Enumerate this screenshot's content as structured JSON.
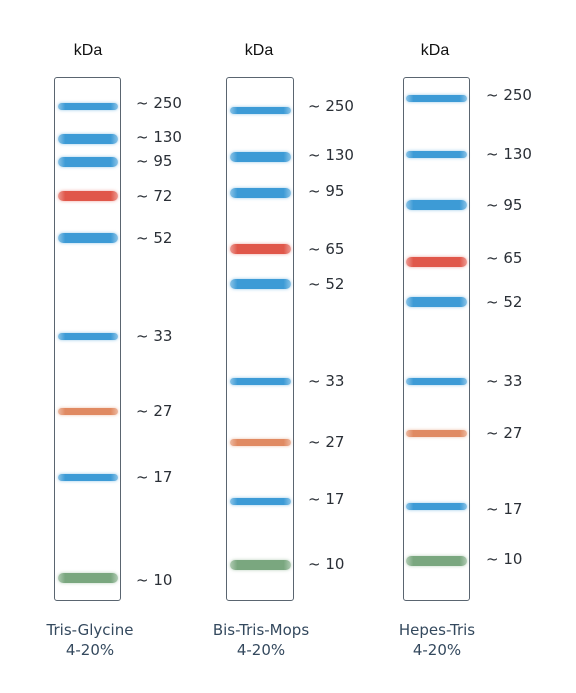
{
  "colors": {
    "blue": "#3d9bd6",
    "red": "#e0574a",
    "orange": "#e08a62",
    "green": "#7aa77f"
  },
  "ladders": [
    {
      "unit": "kDa",
      "caption_line1": "Tris-Glycine",
      "caption_line2": "4-20%",
      "bands": [
        {
          "label": "~ 250",
          "color": "blue"
        },
        {
          "label": "~ 130",
          "color": "blue"
        },
        {
          "label": "~ 95",
          "color": "blue"
        },
        {
          "label": "~ 72",
          "color": "red"
        },
        {
          "label": "~ 52",
          "color": "blue"
        },
        {
          "label": "~ 33",
          "color": "blue"
        },
        {
          "label": "~ 27",
          "color": "orange"
        },
        {
          "label": "~ 17",
          "color": "blue"
        },
        {
          "label": "~ 10",
          "color": "green"
        }
      ]
    },
    {
      "unit": "kDa",
      "caption_line1": "Bis-Tris-Mops",
      "caption_line2": "4-20%",
      "bands": [
        {
          "label": "~ 250",
          "color": "blue"
        },
        {
          "label": "~ 130",
          "color": "blue"
        },
        {
          "label": "~ 95",
          "color": "blue"
        },
        {
          "label": "~ 65",
          "color": "red"
        },
        {
          "label": "~ 52",
          "color": "blue"
        },
        {
          "label": "~ 33",
          "color": "blue"
        },
        {
          "label": "~ 27",
          "color": "orange"
        },
        {
          "label": "~ 17",
          "color": "blue"
        },
        {
          "label": "~ 10",
          "color": "green"
        }
      ]
    },
    {
      "unit": "kDa",
      "caption_line1": "Hepes-Tris",
      "caption_line2": "4-20%",
      "bands": [
        {
          "label": "~ 250",
          "color": "blue"
        },
        {
          "label": "~ 130",
          "color": "blue"
        },
        {
          "label": "~ 95",
          "color": "blue"
        },
        {
          "label": "~ 65",
          "color": "red"
        },
        {
          "label": "~ 52",
          "color": "blue"
        },
        {
          "label": "~ 33",
          "color": "blue"
        },
        {
          "label": "~ 27",
          "color": "orange"
        },
        {
          "label": "~ 17",
          "color": "blue"
        },
        {
          "label": "~ 10",
          "color": "green"
        }
      ]
    }
  ]
}
